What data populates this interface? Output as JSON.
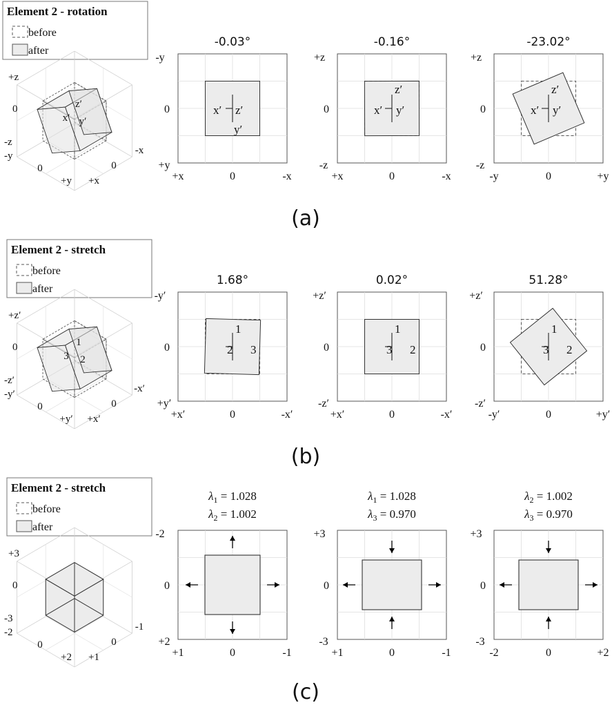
{
  "rows": [
    {
      "caption": "(a)",
      "legend": {
        "title": "Element 2 - rotation",
        "before": "before",
        "after": "after"
      },
      "iso": {
        "kind": "rotated",
        "labels": {
          "z_pos": "+z",
          "z_zero": "0",
          "z_neg": "-z",
          "y_neg": "-y",
          "y_zero": "0",
          "y_pos": "+y",
          "x_pos": "+x",
          "x_zero": "0",
          "x_neg": "-x"
        },
        "inner_labels": [
          "z′",
          "x′",
          "y′"
        ]
      },
      "panels": [
        {
          "title": "-0.03°",
          "left_top": "-y",
          "left_mid": "0",
          "left_bot": "+y",
          "bot_left": "+x",
          "bot_mid": "0",
          "bot_right": "-x",
          "angle": -0.03,
          "scale": [
            1,
            1
          ],
          "arrows": "none",
          "inner": [
            {
              "t": "x′"
            },
            {
              "t": "z′"
            },
            {
              "t": "y′"
            }
          ]
        },
        {
          "title": "-0.16°",
          "left_top": "+z",
          "left_mid": "0",
          "left_bot": "-z",
          "bot_left": "+x",
          "bot_mid": "0",
          "bot_right": "-x",
          "angle": -0.16,
          "scale": [
            1,
            1
          ],
          "arrows": "none",
          "inner": [
            {
              "t": "z′"
            },
            {
              "t": "x′"
            },
            {
              "t": "y′"
            }
          ]
        },
        {
          "title": "-23.02°",
          "left_top": "+z",
          "left_mid": "0",
          "left_bot": "-z",
          "bot_left": "-y",
          "bot_mid": "0",
          "bot_right": "+y",
          "angle": -23.02,
          "scale": [
            1,
            1
          ],
          "arrows": "none",
          "inner": [
            {
              "t": "z′"
            },
            {
              "t": "x′"
            },
            {
              "t": "y′"
            }
          ]
        }
      ]
    },
    {
      "caption": "(b)",
      "legend": {
        "title": "Element 2 - stretch",
        "before": "before",
        "after": "after"
      },
      "iso": {
        "kind": "rotated",
        "labels": {
          "z_pos": "+z′",
          "z_zero": "0",
          "z_neg": "-z′",
          "y_neg": "-y′",
          "y_zero": "0",
          "y_pos": "+y′",
          "x_pos": "+x′",
          "x_zero": "0",
          "x_neg": "-x′"
        },
        "inner_labels": [
          "1",
          "3",
          "2"
        ]
      },
      "panels": [
        {
          "title": "1.68°",
          "left_top": "-y′",
          "left_mid": "0",
          "left_bot": "+y′",
          "bot_left": "+x′",
          "bot_mid": "0",
          "bot_right": "-x′",
          "angle": 1.68,
          "scale": [
            1,
            1
          ],
          "arrows": "none",
          "inner": [
            {
              "t": "1"
            },
            {
              "t": "2"
            },
            {
              "t": "3"
            }
          ]
        },
        {
          "title": "0.02°",
          "left_top": "+z′",
          "left_mid": "0",
          "left_bot": "-z′",
          "bot_left": "+x′",
          "bot_mid": "0",
          "bot_right": "-x′",
          "angle": 0.02,
          "scale": [
            1,
            1
          ],
          "arrows": "none",
          "inner": [
            {
              "t": "1"
            },
            {
              "t": "3"
            },
            {
              "t": "2"
            }
          ]
        },
        {
          "title": "51.28°",
          "left_top": "+z′",
          "left_mid": "0",
          "left_bot": "-z′",
          "bot_left": "-y′",
          "bot_mid": "0",
          "bot_right": "+y′",
          "angle": 51.28,
          "scale": [
            1,
            1
          ],
          "arrows": "none",
          "inner": [
            {
              "t": "1"
            },
            {
              "t": "3"
            },
            {
              "t": "2"
            }
          ]
        }
      ]
    },
    {
      "caption": "(c)",
      "legend": {
        "title": "Element 2 - stretch",
        "before": "before",
        "after": "after"
      },
      "iso": {
        "kind": "cube",
        "labels": {
          "z_pos": "+3",
          "z_zero": "0",
          "z_neg": "-3",
          "y_neg": "-2",
          "y_zero": "0",
          "y_pos": "+2",
          "x_pos": "+1",
          "x_zero": "0",
          "x_neg": "-1"
        },
        "inner_labels": []
      },
      "panels": [
        {
          "title_line1": {
            "sym": "λ",
            "sub": "1",
            "val": " = 1.028"
          },
          "title_line2": {
            "sym": "λ",
            "sub": "2",
            "val": " = 1.002"
          },
          "left_top": "-2",
          "left_mid": "0",
          "left_bot": "+2",
          "bot_left": "+1",
          "bot_mid": "0",
          "bot_right": "-1",
          "scale_h": 1.028,
          "scale_v": 1.002,
          "arrow_h": "out",
          "arrow_v": "out",
          "box": "narrow"
        },
        {
          "title_line1": {
            "sym": "λ",
            "sub": "1",
            "val": " = 1.028"
          },
          "title_line2": {
            "sym": "λ",
            "sub": "3",
            "val": " = 0.970"
          },
          "left_top": "+3",
          "left_mid": "0",
          "left_bot": "-3",
          "bot_left": "+1",
          "bot_mid": "0",
          "bot_right": "-1",
          "scale_h": 1.028,
          "scale_v": 0.97,
          "arrow_h": "out",
          "arrow_v": "in",
          "box": "wide"
        },
        {
          "title_line1": {
            "sym": "λ",
            "sub": "2",
            "val": " = 1.002"
          },
          "title_line2": {
            "sym": "λ",
            "sub": "3",
            "val": " = 0.970"
          },
          "left_top": "+3",
          "left_mid": "0",
          "left_bot": "-3",
          "bot_left": "-2",
          "bot_mid": "0",
          "bot_right": "+2",
          "scale_h": 1.002,
          "scale_v": 0.97,
          "arrow_h": "out",
          "arrow_v": "in",
          "box": "wide"
        }
      ]
    }
  ],
  "colors": {
    "fill": "#ececec",
    "line": "#333333",
    "grid": "#dddddd",
    "frame": "#555555"
  }
}
